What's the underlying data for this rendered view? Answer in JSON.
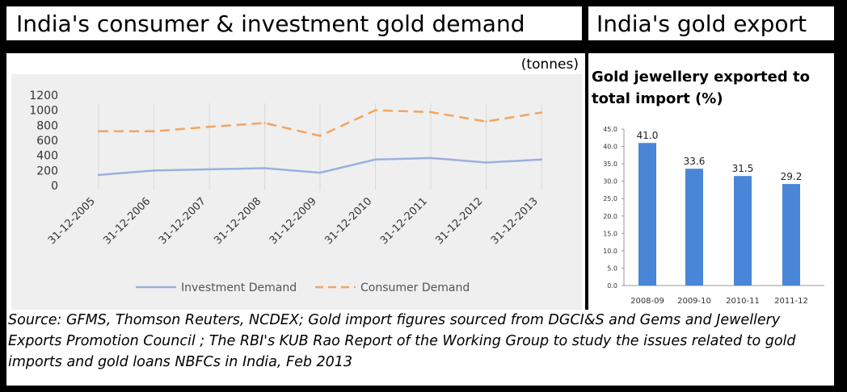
{
  "headers": {
    "left": "India's consumer & investment gold demand",
    "right": "India's gold export"
  },
  "units": "(tonnes)",
  "right_title": "Gold jewellery exported to total import (%)",
  "source": "Source: GFMS, Thomson Reuters, NCDEX; Gold import figures sourced from DGCI&S and Gems and Jewellery Exports Promotion Council ; The RBI's KUB Rao Report of the Working Group to study the issues  related to gold imports and gold loans NBFCs in India, Feb 2013",
  "chart_data": [
    {
      "type": "line",
      "x": [
        "31-12-2005",
        "31-12-2006",
        "31-12-2007",
        "31-12-2008",
        "31-12-2009",
        "31-12-2010",
        "31-12-2011",
        "31-12-2012",
        "31-12-2013"
      ],
      "series": [
        {
          "name": "Investment Demand",
          "values": [
            140,
            200,
            215,
            230,
            170,
            345,
            365,
            305,
            345
          ],
          "color": "#9bb0e0",
          "style": "solid"
        },
        {
          "name": "Consumer Demand",
          "values": [
            720,
            720,
            780,
            830,
            660,
            1000,
            975,
            850,
            970
          ],
          "color": "#f4a460",
          "style": "dashed"
        }
      ],
      "yticks": [
        0,
        200,
        400,
        600,
        800,
        1000,
        1200
      ],
      "ylim": [
        0,
        1200
      ],
      "legend": "bottom",
      "grid": "vertical"
    },
    {
      "type": "bar",
      "categories": [
        "2008-09",
        "2009-10",
        "2010-11",
        "2011-12"
      ],
      "values": [
        41.0,
        33.6,
        31.5,
        29.2
      ],
      "labels": [
        "41.0",
        "33.6",
        "31.5",
        "29.2"
      ],
      "yticks": [
        "0.0",
        "5.0",
        "10.0",
        "15.0",
        "20.0",
        "25.0",
        "30.0",
        "35.0",
        "40.0",
        "45.0"
      ],
      "ylim": [
        0,
        45
      ],
      "color": "#4a86d8"
    }
  ]
}
